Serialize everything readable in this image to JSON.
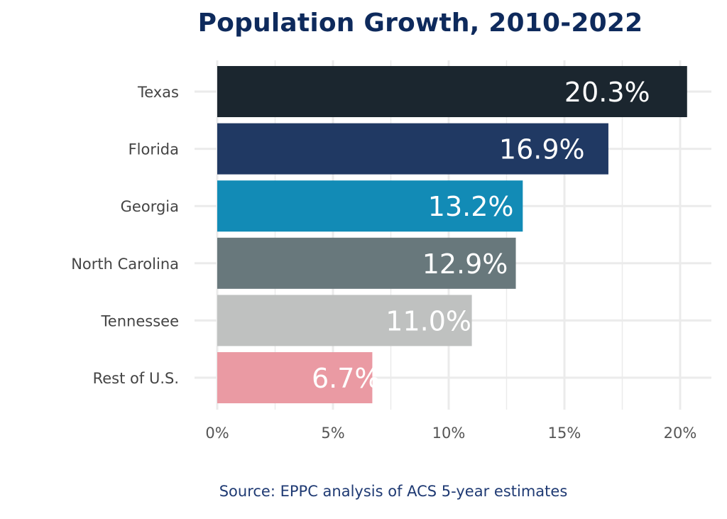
{
  "chart_data": {
    "type": "bar",
    "orientation": "horizontal",
    "title": "Population Growth, 2010-2022",
    "source": "Source: EPPC analysis of ACS 5-year estimates",
    "categories": [
      "Texas",
      "Florida",
      "Georgia",
      "North Carolina",
      "Tennessee",
      "Rest of U.S."
    ],
    "values": [
      20.3,
      16.9,
      13.2,
      12.9,
      11.0,
      6.7
    ],
    "value_labels": [
      "20.3%",
      "16.9%",
      "13.2%",
      "12.9%",
      "11.0%",
      "6.7%"
    ],
    "colors": [
      "#1b262f",
      "#203963",
      "#128bb6",
      "#68787c",
      "#bfc1c0",
      "#ea9aa3"
    ],
    "value_label_color": "#ffffff",
    "xlim": [
      0,
      21.3
    ],
    "xticks": [
      0,
      5,
      10,
      15,
      20
    ],
    "xtick_labels": [
      "0%",
      "5%",
      "10%",
      "15%",
      "20%"
    ],
    "xlabel": "",
    "ylabel": "",
    "grid": true,
    "legend": false
  }
}
